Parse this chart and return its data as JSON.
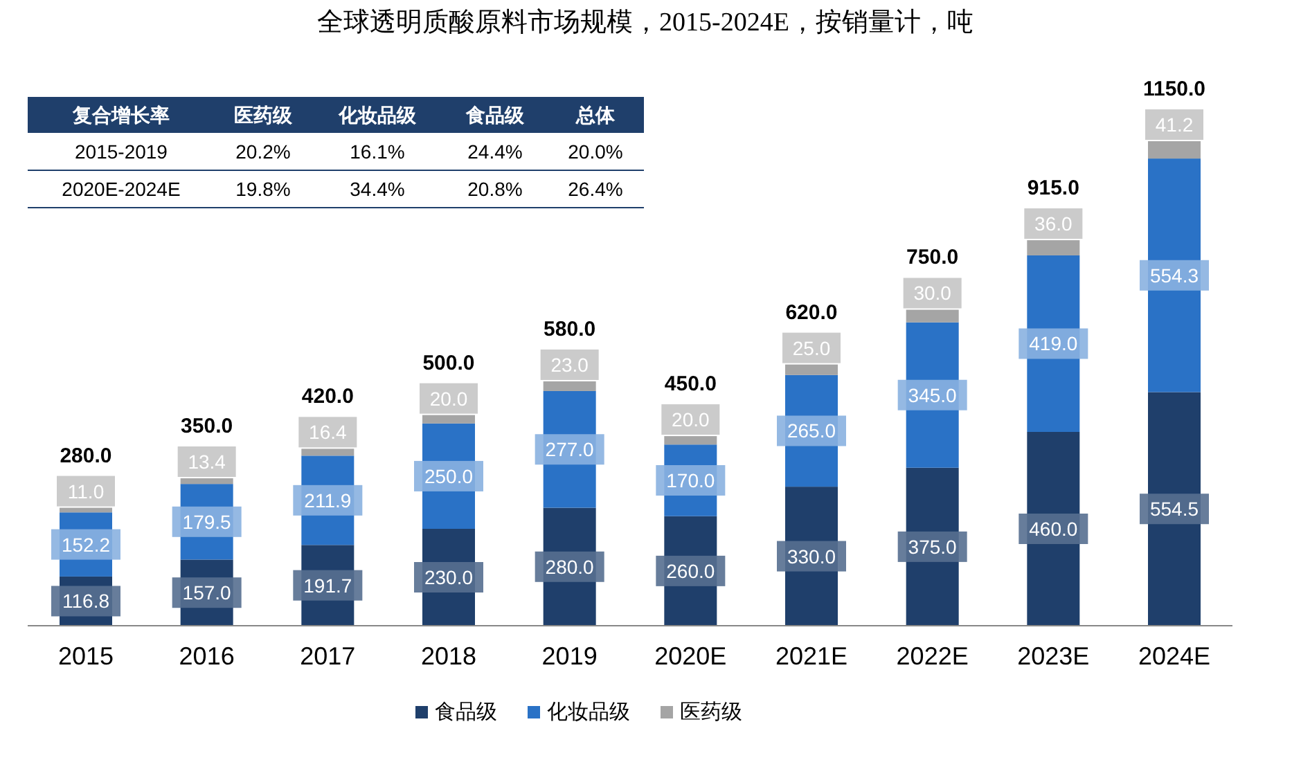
{
  "chart_data": {
    "type": "bar",
    "stacked": true,
    "title": "全球透明质酸原料市场规模，2015-2024E，按销量计，吨",
    "categories": [
      "2015",
      "2016",
      "2017",
      "2018",
      "2019",
      "2020E",
      "2021E",
      "2022E",
      "2023E",
      "2024E"
    ],
    "series": [
      {
        "name": "食品级",
        "color": "#1f3f6b",
        "values": [
          116.8,
          157.0,
          191.7,
          230.0,
          280.0,
          260.0,
          330.0,
          375.0,
          460.0,
          554.5
        ],
        "value_labels": [
          "116.8",
          "157.0",
          "191.7",
          "230.0",
          "280.0",
          "260.0",
          "330.0",
          "375.0",
          "460.0",
          "554.5"
        ]
      },
      {
        "name": "化妆品级",
        "color": "#2a72c6",
        "values": [
          152.2,
          179.5,
          211.9,
          250.0,
          277.0,
          170.0,
          265.0,
          345.0,
          419.0,
          554.3
        ],
        "value_labels": [
          "152.2",
          "179.5",
          "211.9",
          "250.0",
          "277.0",
          "170.0",
          "265.0",
          "345.0",
          "419.0",
          "554.3"
        ]
      },
      {
        "name": "医药级",
        "color": "#a5a5a5",
        "values": [
          11.0,
          13.4,
          16.4,
          20.0,
          23.0,
          20.0,
          25.0,
          30.0,
          36.0,
          41.2
        ],
        "value_labels": [
          "11.0",
          "13.4",
          "16.4",
          "20.0",
          "23.0",
          "20.0",
          "25.0",
          "30.0",
          "36.0",
          "41.2"
        ]
      }
    ],
    "totals": [
      "280.0",
      "350.0",
      "420.0",
      "500.0",
      "580.0",
      "450.0",
      "620.0",
      "750.0",
      "915.0",
      "1150.0"
    ],
    "legend": "bottom",
    "annotations": [
      "复合增长率",
      "医药级",
      "化妆品级",
      "食品级",
      "总体",
      "2015-2019",
      "20.2%",
      "16.1%",
      "24.4%",
      "20.0%",
      "2020E-2024E",
      "19.8%",
      "34.4%",
      "20.8%",
      "26.4%"
    ]
  }
}
